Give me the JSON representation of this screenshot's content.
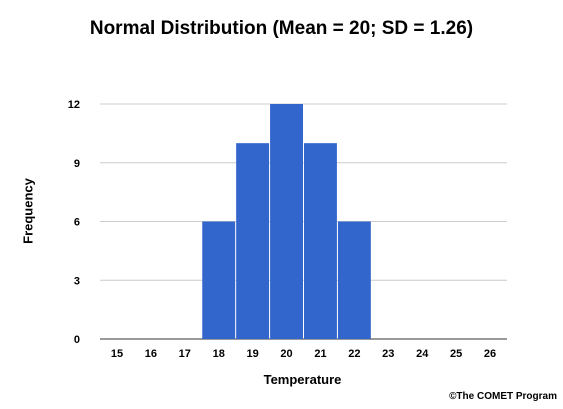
{
  "chart_data": {
    "type": "bar",
    "title": "Normal Distribution (Mean = 20; SD = 1.26)",
    "xlabel": "Temperature",
    "ylabel": "Frequency",
    "categories": [
      "15",
      "16",
      "17",
      "18",
      "19",
      "20",
      "21",
      "22",
      "23",
      "24",
      "25",
      "26"
    ],
    "values": [
      0,
      0,
      0,
      6,
      10,
      12,
      10,
      6,
      0,
      0,
      0,
      0
    ],
    "ylim": [
      0,
      12
    ],
    "yticks": [
      0,
      3,
      6,
      9,
      12
    ],
    "grid": true,
    "legend": "none",
    "bar_color": "#3366CC",
    "grid_color": "#CCCCCC"
  },
  "credit": "©The COMET Program"
}
